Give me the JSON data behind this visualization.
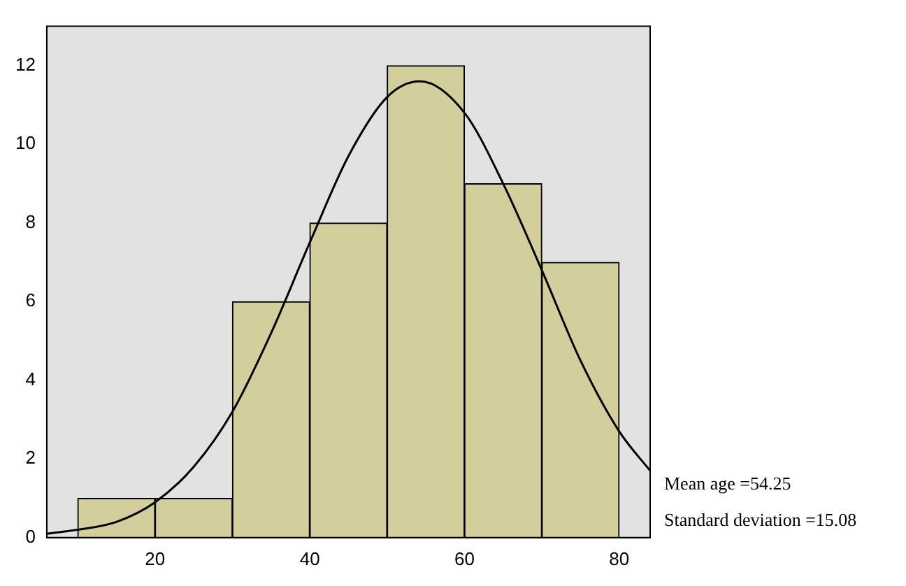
{
  "chart_data": {
    "type": "histogram",
    "bins": [
      10,
      20,
      30,
      40,
      50,
      60,
      70,
      80
    ],
    "values": [
      1,
      1,
      6,
      8,
      12,
      9,
      7
    ],
    "color": "#d3cf9c",
    "series": [
      {
        "type": "line",
        "color": "#000000",
        "x": [
          6,
          10,
          15,
          20,
          25,
          30,
          35,
          40,
          45,
          50,
          54.25,
          60,
          65,
          70,
          75,
          80,
          84
        ],
        "values": [
          0.1,
          0.2,
          0.4,
          0.9,
          1.8,
          3.2,
          5.2,
          7.5,
          9.7,
          11.2,
          11.6,
          10.8,
          9.0,
          6.8,
          4.5,
          2.7,
          1.7
        ]
      }
    ],
    "xlim": [
      6,
      84
    ],
    "ylim": [
      0,
      13
    ],
    "xticks": [
      20,
      40,
      60,
      80
    ],
    "yticks": [
      0,
      2,
      4,
      6,
      8,
      10,
      12
    ],
    "annotations": [
      "Mean age =54.25",
      "Standard deviation =15.08"
    ]
  }
}
